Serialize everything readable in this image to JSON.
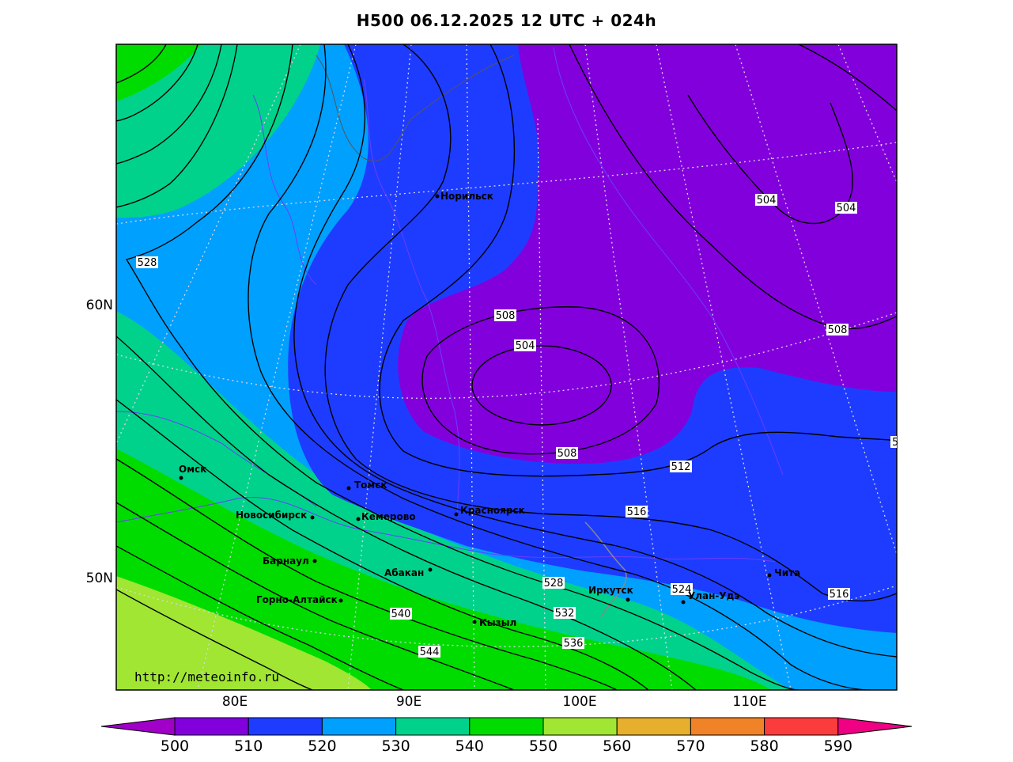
{
  "title": "H500  06.12.2025 12 UTC + 024h",
  "credit": "http://meteoinfo.ru",
  "lat_labels": [
    "60N",
    "50N"
  ],
  "lon_labels": [
    "80E",
    "90E",
    "100E",
    "110E"
  ],
  "cities": [
    {
      "name": "Норильск"
    },
    {
      "name": "Омск"
    },
    {
      "name": "Томск"
    },
    {
      "name": "Новосибирск"
    },
    {
      "name": "Кемерово"
    },
    {
      "name": "Красноярск"
    },
    {
      "name": "Барнаул"
    },
    {
      "name": "Абакан"
    },
    {
      "name": "Горно-Алтайск"
    },
    {
      "name": "Кызыл"
    },
    {
      "name": "Иркутск"
    },
    {
      "name": "Улан-Удэ"
    },
    {
      "name": "Чита"
    }
  ],
  "contour_labels": [
    "528",
    "504",
    "504",
    "508",
    "504",
    "508",
    "508",
    "512",
    "516",
    "516",
    "524",
    "528",
    "532",
    "536",
    "540",
    "544",
    "5"
  ],
  "colorbar": {
    "ticks": [
      "500",
      "510",
      "520",
      "530",
      "540",
      "550",
      "560",
      "570",
      "580",
      "590"
    ],
    "colors": [
      "#a000c8",
      "#8200dc",
      "#1e3cff",
      "#00a0ff",
      "#00d28c",
      "#00dc00",
      "#a0e632",
      "#e6af2d",
      "#f08228",
      "#fa3c3c",
      "#f00082"
    ]
  }
}
